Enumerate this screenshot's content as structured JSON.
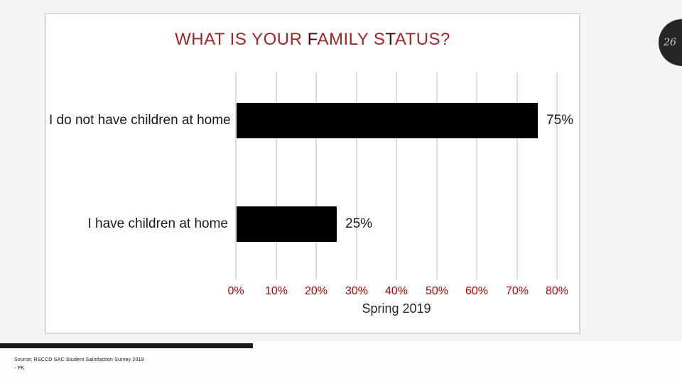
{
  "slide": {
    "page_number": "26",
    "title_segments": [
      {
        "text": "WHAT IS YOUR ",
        "color": "#a5242a"
      },
      {
        "text": "F",
        "color": "#3a0d10"
      },
      {
        "text": "AMILY S",
        "color": "#a5242a"
      },
      {
        "text": "T",
        "color": "#3a0d10"
      },
      {
        "text": "ATUS?",
        "color": "#a5242a"
      }
    ]
  },
  "chart_data": {
    "type": "bar",
    "orientation": "horizontal",
    "title": "WHAT IS YOUR FAMILY STATUS?",
    "categories": [
      "I do not have children at home",
      "I have children at home"
    ],
    "values": [
      75,
      25
    ],
    "value_labels": [
      "75%",
      "25%"
    ],
    "xlabel": "Spring 2019",
    "ylabel": "",
    "xlim": [
      0,
      80
    ],
    "x_ticks": [
      "0%",
      "10%",
      "20%",
      "30%",
      "40%",
      "50%",
      "60%",
      "70%",
      "80%"
    ],
    "grid": true,
    "legend": false,
    "bar_color": "#000000",
    "tick_color": "#c00000",
    "gridline_color": "#dcdcdc"
  },
  "footer": {
    "source_line1": "Source: RSCCD SAC Student Satisfaction Survey 2019",
    "source_line2": "- PK"
  }
}
